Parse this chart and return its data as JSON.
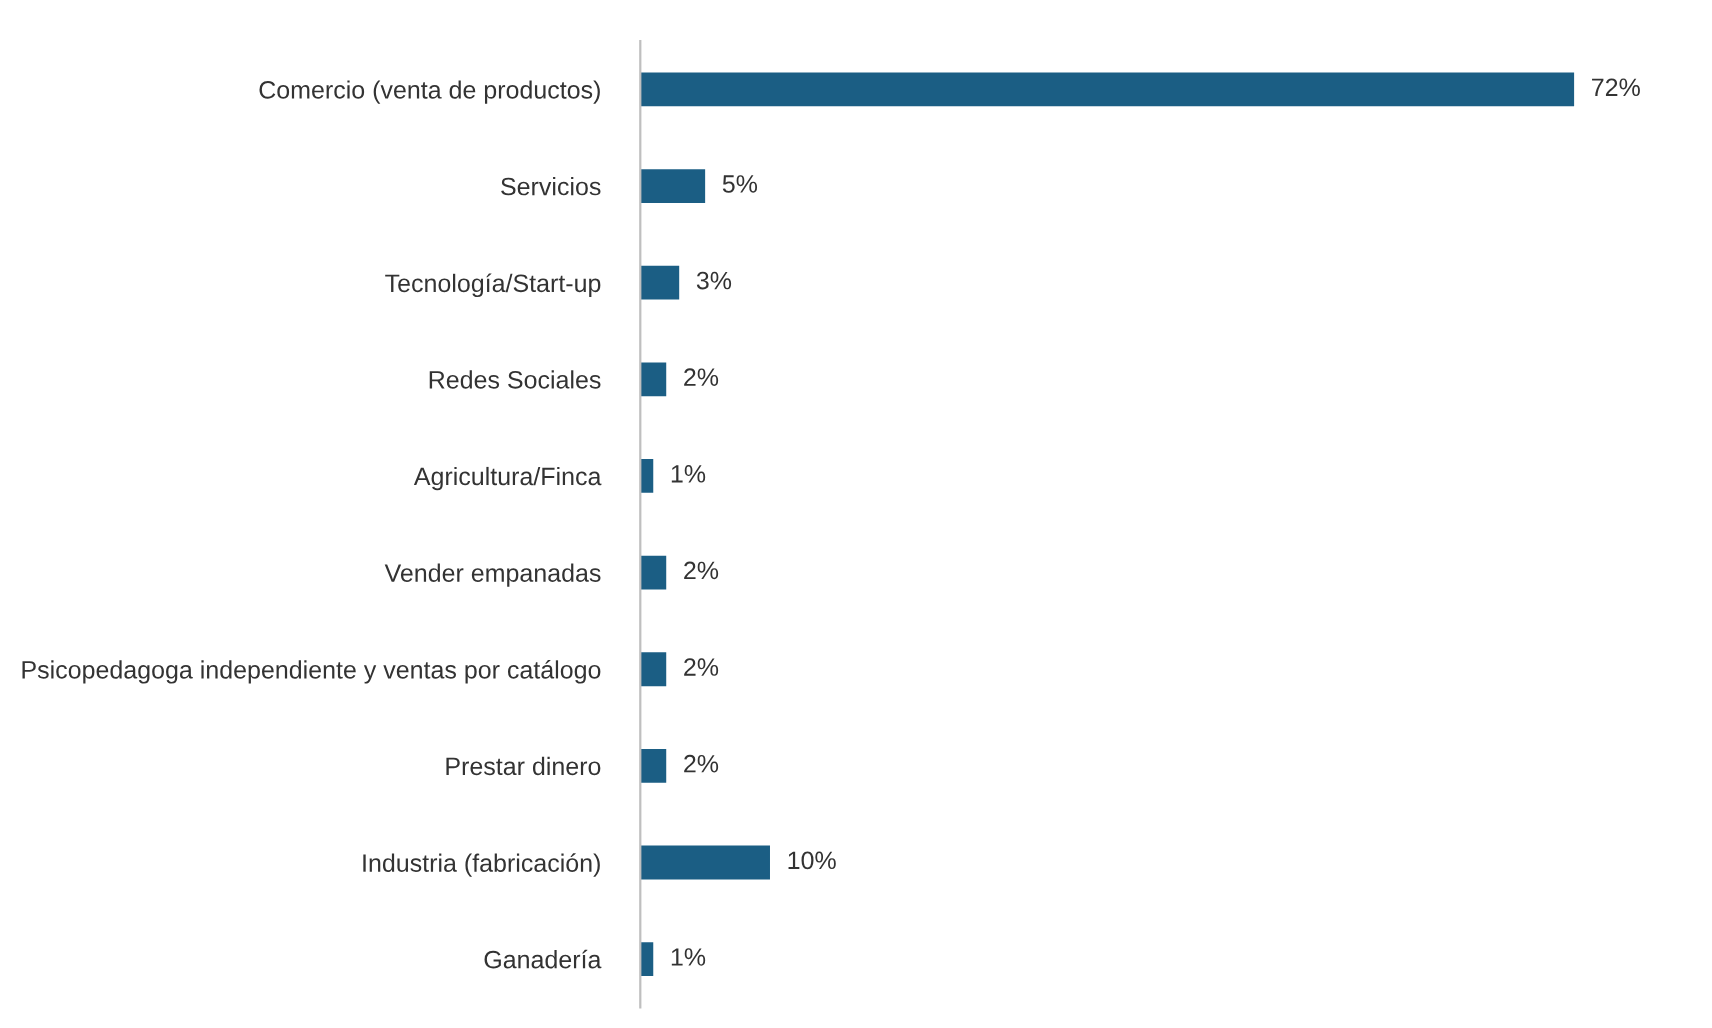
{
  "chart_data": {
    "type": "bar",
    "orientation": "horizontal",
    "categories": [
      "Comercio (venta de productos)",
      "Servicios",
      "Tecnología/Start-up",
      "Redes Sociales",
      "Agricultura/Finca",
      "Vender empanadas",
      "Psicopedagoga independiente y ventas por catálogo",
      "Prestar dinero",
      "Industria (fabricación)",
      "Ganadería"
    ],
    "values": [
      72,
      5,
      3,
      2,
      1,
      2,
      2,
      2,
      10,
      1
    ],
    "value_labels": [
      "72%",
      "5%",
      "3%",
      "2%",
      "1%",
      "2%",
      "2%",
      "2%",
      "10%",
      "1%"
    ],
    "color": "#1b5e84",
    "grid": false,
    "legend": false
  }
}
